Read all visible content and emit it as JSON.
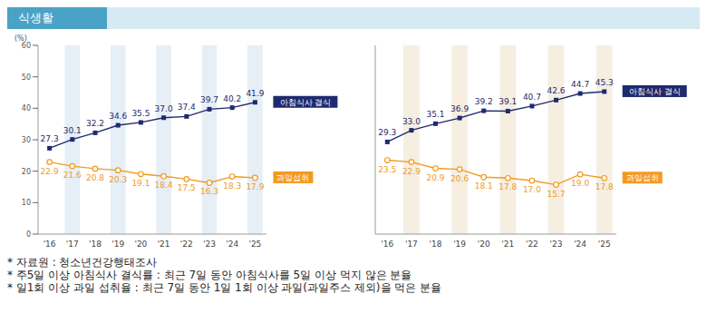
{
  "title": "식생활",
  "chart_data": [
    {
      "type": "line",
      "y_label": "(%)",
      "categories": [
        "'16",
        "'17",
        "'18",
        "'19",
        "'20",
        "'21",
        "'22",
        "'23",
        "'24",
        "'25"
      ],
      "series": [
        {
          "name": "아침식사 결식",
          "color": "#1f2a6e",
          "marker": "square",
          "values": [
            27.3,
            30.1,
            32.2,
            34.6,
            35.5,
            37.0,
            37.4,
            39.7,
            40.2,
            41.9
          ],
          "value_labels": [
            "27.3",
            "30.1",
            "32.2",
            "34.6",
            "35.5",
            "37.0",
            "37.4",
            "39.7",
            "40.2",
            "41.9"
          ]
        },
        {
          "name": "과일섭취",
          "color": "#f39a1e",
          "marker": "circle",
          "values": [
            22.9,
            21.6,
            20.8,
            20.3,
            19.1,
            18.4,
            17.5,
            16.3,
            18.3,
            17.9
          ],
          "value_labels": [
            "22.9",
            "21.6",
            "20.8",
            "20.3",
            "19.1",
            "18.4",
            "17.5",
            "16.3",
            "18.3",
            "17.9"
          ]
        }
      ],
      "ylim": [
        0,
        60
      ],
      "yticks": [
        0,
        10,
        20,
        30,
        40,
        50,
        60
      ],
      "data_labels": true
    },
    {
      "type": "line",
      "categories": [
        "'16",
        "'17",
        "'18",
        "'19",
        "'20",
        "'21",
        "'22",
        "'23",
        "'24",
        "'25"
      ],
      "series": [
        {
          "name": "아침식사 결식",
          "color": "#1f2a6e",
          "marker": "square",
          "values": [
            29.3,
            33.0,
            35.1,
            36.9,
            39.2,
            39.1,
            40.7,
            42.6,
            44.7,
            45.3
          ],
          "value_labels": [
            "29.3",
            "33.0",
            "35.1",
            "36.9",
            "39.2",
            "39.1",
            "40.7",
            "42.6",
            "44.7",
            "45.3"
          ]
        },
        {
          "name": "과일섭취",
          "color": "#f39a1e",
          "marker": "circle",
          "values": [
            23.5,
            22.9,
            20.9,
            20.6,
            18.1,
            17.8,
            17.0,
            15.7,
            19.0,
            17.8
          ],
          "value_labels": [
            "23.5",
            "22.9",
            "20.9",
            "20.6",
            "18.1",
            "17.8",
            "17.0",
            "15.7",
            "19.0",
            "17.8"
          ]
        }
      ],
      "ylim": [
        0,
        60
      ],
      "tick_labels": "x",
      "data_labels": true
    }
  ],
  "notes": [
    "* 자료원 : 청소년건강행태조사",
    "* 주5일 이상 아침식사 결식률 : 최근 7일 동안 아침식사를 5일 이상 먹지 않은 분율",
    "* 일1회 이상 과일 섭취율 : 최근 7일 동안 1일 1회 이상 과일(과일주스 제외)을 먹은 분율"
  ]
}
